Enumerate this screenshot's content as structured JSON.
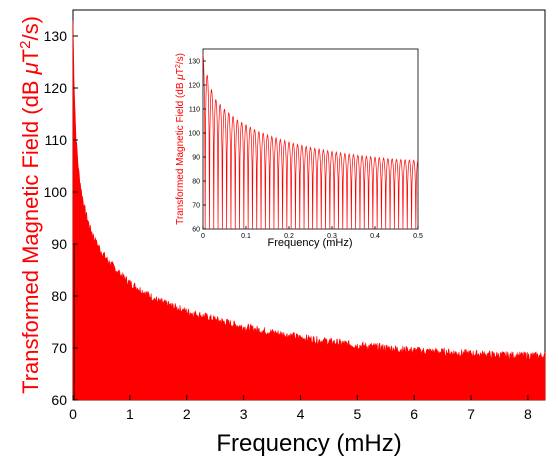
{
  "chart_data": [
    {
      "type": "line",
      "role": "main",
      "xlabel": "Frequency (mHz)",
      "ylabel_prefix": "Transformed Magnetic Field (dB ",
      "ylabel_mu": "μ",
      "ylabel_T": "T",
      "ylabel_sup": "2",
      "ylabel_suffix": "/s)",
      "xlim": [
        0,
        8.3
      ],
      "ylim": [
        60,
        135
      ],
      "xticks": [
        0,
        1,
        2,
        3,
        4,
        5,
        6,
        7,
        8
      ],
      "xtick_labels": [
        "0",
        "1",
        "2",
        "3",
        "4",
        "5",
        "6",
        "7",
        "8"
      ],
      "yticks": [
        60,
        70,
        80,
        90,
        100,
        110,
        120,
        130
      ],
      "ytick_labels": [
        "60",
        "70",
        "80",
        "90",
        "100",
        "110",
        "120",
        "130"
      ],
      "series": [
        {
          "color": "#ff0000",
          "filled_to_baseline": true,
          "envelope": {
            "x": [
              0,
              0.02,
              0.05,
              0.1,
              0.15,
              0.2,
              0.3,
              0.4,
              0.5,
              0.6,
              0.8,
              1.0,
              1.5,
              2.0,
              2.5,
              3.0,
              3.5,
              4.0,
              4.5,
              5.0,
              5.5,
              6.0,
              6.5,
              7.0,
              7.5,
              8.0,
              8.3
            ],
            "y": [
              133,
              121,
              111,
              104,
              100,
              97,
              93,
              90.5,
              88.5,
              87,
              84.5,
              82.5,
              79,
              77,
              75.5,
              74,
              73,
              72,
              71.2,
              70.5,
              70,
              69.5,
              69.2,
              68.9,
              68.6,
              68.5,
              68.5
            ]
          }
        }
      ]
    },
    {
      "type": "line",
      "role": "inset",
      "xlabel": "Frequency (mHz)",
      "ylabel_prefix": "Transformed Magnetic Field (dB ",
      "ylabel_mu": "μ",
      "ylabel_T": "T",
      "ylabel_sup": "2",
      "ylabel_suffix": "/s)",
      "xlim": [
        0,
        0.5
      ],
      "ylim": [
        60,
        135
      ],
      "xticks": [
        0,
        0.1,
        0.2,
        0.3,
        0.4,
        0.5
      ],
      "xtick_labels": [
        "0",
        "0.1",
        "0.2",
        "0.3",
        "0.4",
        "0.5"
      ],
      "yticks": [
        60,
        70,
        80,
        90,
        100,
        110,
        120,
        130
      ],
      "ytick_labels": [
        "60",
        "70",
        "80",
        "90",
        "100",
        "110",
        "120",
        "130"
      ],
      "series": [
        {
          "color": "#ff0000",
          "filled_to_baseline": false,
          "peak_x": [
            0,
            0.01,
            0.02,
            0.03,
            0.04,
            0.05,
            0.06,
            0.07,
            0.08,
            0.09,
            0.1,
            0.11,
            0.12,
            0.13,
            0.14,
            0.15,
            0.16,
            0.17,
            0.18,
            0.19,
            0.2,
            0.21,
            0.22,
            0.23,
            0.24,
            0.25,
            0.26,
            0.27,
            0.28,
            0.29,
            0.3,
            0.31,
            0.32,
            0.33,
            0.34,
            0.35,
            0.36,
            0.37,
            0.38,
            0.39,
            0.4,
            0.41,
            0.42,
            0.43,
            0.44,
            0.45,
            0.46,
            0.47,
            0.48,
            0.49
          ],
          "peak_y": [
            133,
            124,
            118,
            114,
            112,
            110,
            108.5,
            107,
            105.5,
            104.5,
            103.5,
            102.5,
            101.5,
            100.5,
            100,
            99.2,
            98.5,
            98,
            97.3,
            96.8,
            96.2,
            95.7,
            95.2,
            94.8,
            94.4,
            94,
            93.6,
            93.3,
            93,
            92.6,
            92.3,
            92,
            91.7,
            91.4,
            91.2,
            91,
            90.7,
            90.5,
            90.3,
            90.1,
            89.9,
            89.7,
            89.5,
            89.3,
            89.2,
            89,
            88.9,
            88.8,
            88.7,
            88.6
          ],
          "trough_y": 60
        }
      ]
    }
  ]
}
